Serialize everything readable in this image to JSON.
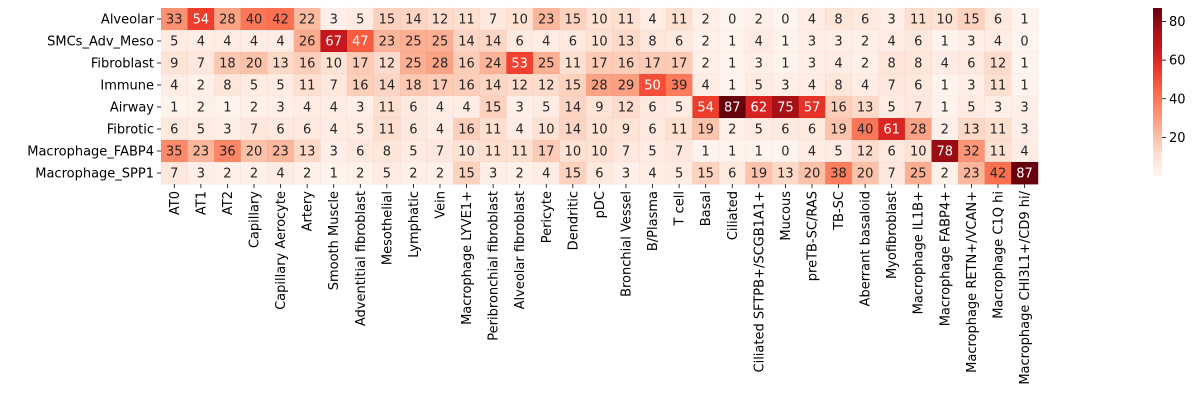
{
  "chart_data": {
    "type": "heatmap",
    "title": "",
    "xlabel": "",
    "ylabel": "",
    "rows": [
      "Alveolar",
      "SMCs_Adv_Meso",
      "Fibroblast",
      "Immune",
      "Airway",
      "Fibrotic",
      "Macrophage_FABP4",
      "Macrophage_SPP1"
    ],
    "columns": [
      "AT0",
      "AT1",
      "AT2",
      "Capillary",
      "Capillary Aerocyte",
      "Artery",
      "Smooth Muscle",
      "Adventitial fibroblast",
      "Mesothelial",
      "Lymphatic",
      "Vein",
      "Macrophage LYVE1+",
      "Peribronchial fibroblast",
      "Alveolar fibroblast",
      "Pericyte",
      "Dendritic",
      "pDC",
      "Bronchial Vessel",
      "B/Plasma",
      "T cell",
      "Basal",
      "Ciliated",
      "Ciliated SFTPB+/SCGB1A1+",
      "Mucous",
      "preTB-SC/RAS",
      "TB-SC",
      "Aberrant basaloid",
      "Myofibroblast",
      "Macrophage IL1B+",
      "Macrophage FABP4+",
      "Macrophage RETN+/VCAN+",
      "Macrophage C1Q hi",
      "Macrophage CHI3L1+/CD9 hi/"
    ],
    "values": [
      [
        33,
        54,
        28,
        40,
        42,
        22,
        3,
        5,
        15,
        14,
        12,
        11,
        7,
        10,
        23,
        15,
        10,
        11,
        4,
        11,
        2,
        0,
        2,
        0,
        4,
        8,
        6,
        3,
        11,
        10,
        15,
        6,
        1
      ],
      [
        5,
        4,
        4,
        4,
        4,
        26,
        67,
        47,
        23,
        25,
        25,
        14,
        14,
        6,
        4,
        6,
        10,
        13,
        8,
        6,
        2,
        1,
        4,
        1,
        3,
        3,
        2,
        4,
        6,
        1,
        3,
        4,
        0
      ],
      [
        9,
        7,
        18,
        20,
        13,
        16,
        10,
        17,
        12,
        25,
        28,
        16,
        24,
        53,
        25,
        11,
        17,
        16,
        17,
        17,
        2,
        1,
        3,
        1,
        3,
        4,
        2,
        8,
        8,
        4,
        6,
        12,
        1
      ],
      [
        4,
        2,
        8,
        5,
        5,
        11,
        7,
        16,
        14,
        18,
        17,
        16,
        14,
        12,
        12,
        15,
        28,
        29,
        50,
        39,
        4,
        1,
        5,
        3,
        4,
        8,
        4,
        7,
        6,
        1,
        3,
        11,
        1
      ],
      [
        1,
        2,
        1,
        2,
        3,
        4,
        4,
        3,
        11,
        6,
        4,
        4,
        15,
        3,
        5,
        14,
        9,
        12,
        6,
        5,
        54,
        87,
        62,
        75,
        57,
        16,
        13,
        5,
        7,
        1,
        5,
        3,
        3
      ],
      [
        6,
        5,
        3,
        7,
        6,
        6,
        4,
        5,
        11,
        6,
        4,
        16,
        11,
        4,
        10,
        14,
        10,
        9,
        6,
        11,
        19,
        2,
        5,
        6,
        6,
        19,
        40,
        61,
        28,
        2,
        13,
        11,
        3
      ],
      [
        35,
        23,
        36,
        20,
        23,
        13,
        3,
        6,
        8,
        5,
        7,
        10,
        11,
        11,
        17,
        10,
        10,
        7,
        5,
        7,
        1,
        1,
        1,
        0,
        4,
        5,
        12,
        6,
        10,
        78,
        32,
        11,
        4
      ],
      [
        7,
        3,
        2,
        2,
        4,
        2,
        1,
        2,
        5,
        2,
        2,
        15,
        3,
        2,
        4,
        15,
        6,
        3,
        4,
        5,
        15,
        6,
        19,
        13,
        20,
        38,
        20,
        7,
        25,
        2,
        23,
        42,
        87
      ]
    ],
    "vmin": 0,
    "vmax": 87,
    "colormap": "Reds",
    "colorbar": {
      "ticks": [
        20,
        40,
        60,
        80
      ],
      "tick_labels": [
        "20",
        "40",
        "60",
        "80"
      ]
    },
    "annotate": true
  }
}
